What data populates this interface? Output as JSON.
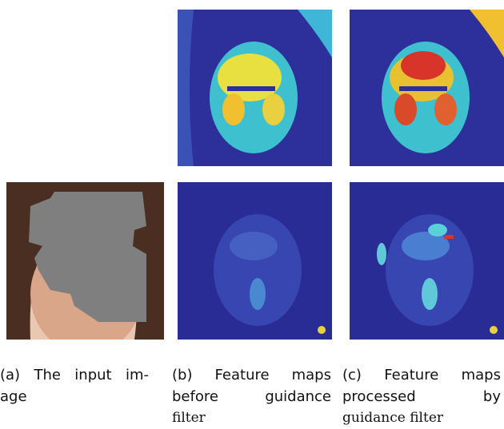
{
  "figure": {
    "captions": [
      {
        "lines": [
          "(a) The input im-",
          "age"
        ]
      },
      {
        "lines": [
          "(b) Feature maps",
          "before guidance",
          "filter"
        ]
      },
      {
        "lines": [
          "(c) Feature maps",
          "processed by",
          "guidance filter"
        ]
      }
    ]
  }
}
